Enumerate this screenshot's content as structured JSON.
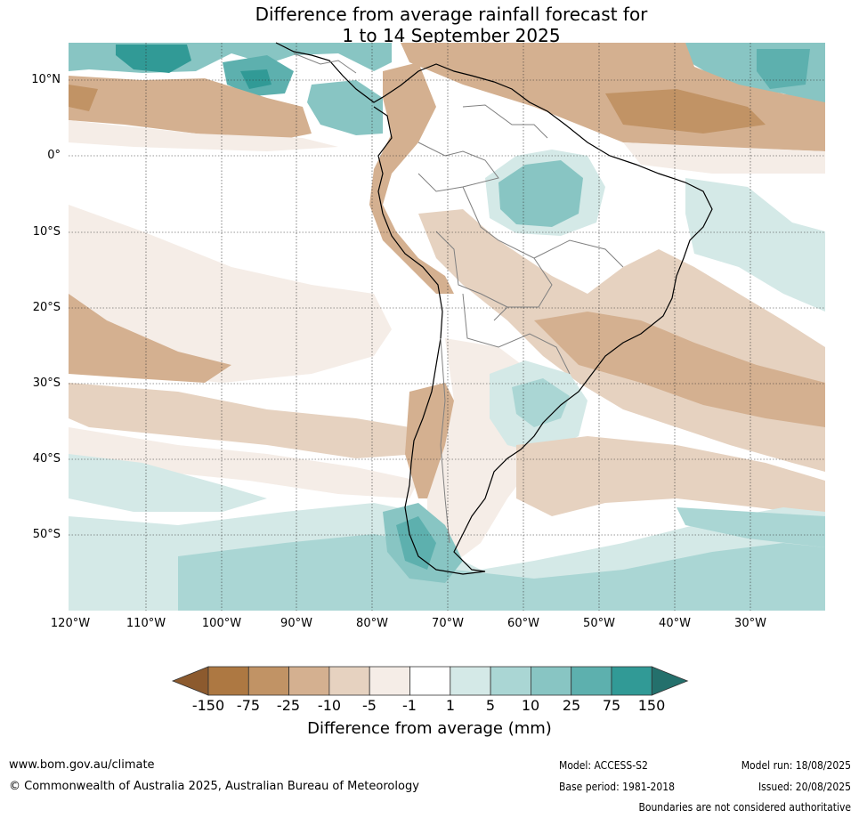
{
  "title": {
    "line1": "Difference from average rainfall forecast for",
    "line2": "1 to 14 September 2025"
  },
  "map": {
    "lat_labels": [
      "10°N",
      "0°",
      "10°S",
      "20°S",
      "30°S",
      "40°S",
      "50°S"
    ],
    "lon_labels": [
      "120°W",
      "110°W",
      "100°W",
      "90°W",
      "80°W",
      "70°W",
      "60°W",
      "50°W",
      "40°W",
      "30°W"
    ]
  },
  "colorbar": {
    "title": "Difference from average (mm)",
    "ticks": [
      "-150",
      "-75",
      "-25",
      "-10",
      "-5",
      "-1",
      "1",
      "5",
      "10",
      "25",
      "75",
      "150"
    ],
    "colors": [
      "#8c5a2e",
      "#ad7842",
      "#c19365",
      "#d4b090",
      "#e6d2c0",
      "#f5ede7",
      "#ffffff",
      "#d4e9e7",
      "#aad6d4",
      "#88c5c3",
      "#5db0ae",
      "#319a96",
      "#24706c"
    ]
  },
  "footer": {
    "url": "www.bom.gov.au/climate",
    "copyright": "© Commonwealth of Australia 2025, Australian Bureau of Meteorology",
    "model": "Model: ACCESS-S2",
    "base_period": "Base period: 1981-2018",
    "model_run": "Model run: 18/08/2025",
    "issued": "Issued: 20/08/2025",
    "disclaimer": "Boundaries are not considered authoritative"
  }
}
